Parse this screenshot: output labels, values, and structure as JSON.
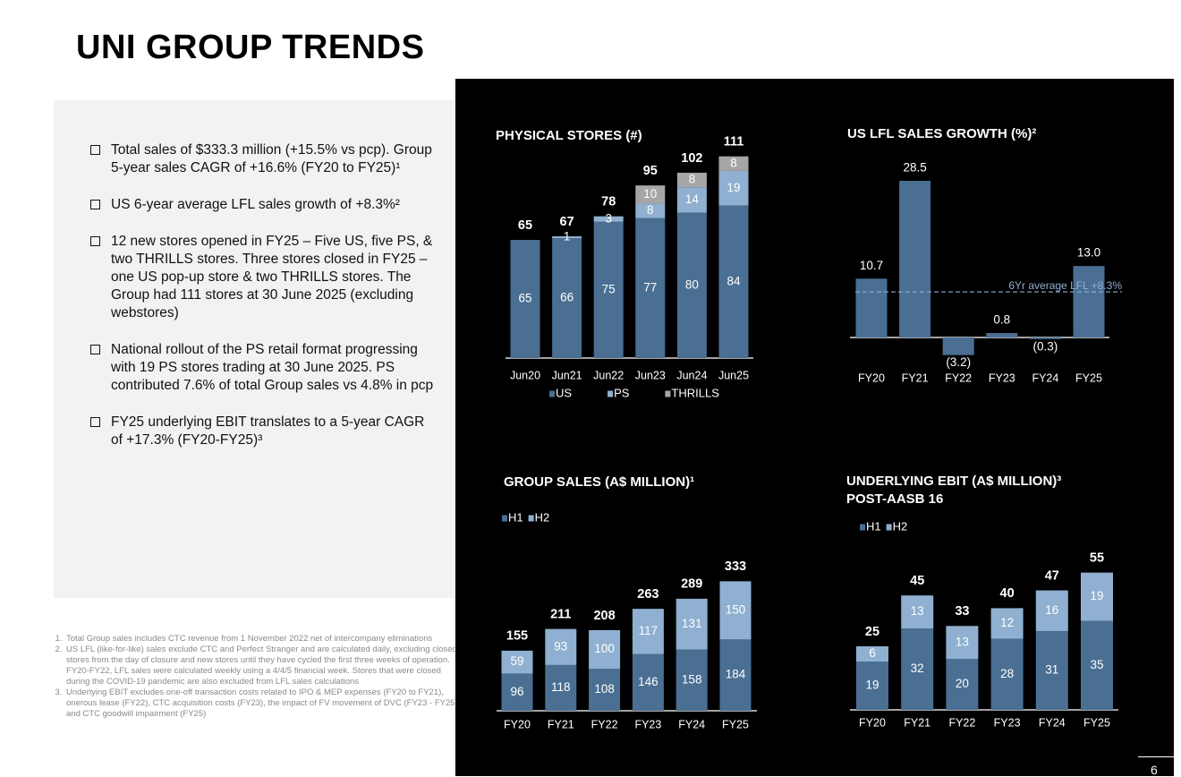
{
  "title": "UNI GROUP TRENDS",
  "bullets": [
    "Total sales of $333.3 million (+15.5% vs pcp). Group 5-year sales CAGR of +16.6% (FY20 to FY25)¹",
    "US 6-year average LFL sales growth of +8.3%²",
    "12 new stores opened in FY25 – Five US, five PS, & two THRILLS stores.  Three stores closed in FY25 – one US pop-up store & two THRILLS stores. The Group had 111 stores at 30 June 2025 (excluding webstores)",
    "National rollout of the PS retail format progressing with 19 PS stores trading at 30 June 2025.  PS contributed 7.6% of total Group sales vs 4.8% in pcp",
    "FY25 underlying EBIT translates to a 5-year CAGR of +17.3% (FY20-FY25)³"
  ],
  "footnotes": [
    "Total Group sales includes CTC revenue from 1 November 2022 net of intercompany eliminations",
    "US LFL (like-for-like) sales exclude CTC and Perfect Stranger and are calculated daily, excluding closed stores from the day of closure and new stores until they have cycled the first three weeks of operation. FY20-FY22, LFL sales were calculated weekly using a 4/4/5 financial week. Stores that were closed during the COVID-19 pandemic are also excluded from LFL sales calculations",
    "Underlying EBIT excludes one-off transaction costs related to IPO & MEP expenses (FY20 to FY21), onerous lease (FY22), CTC acquisition costs (FY23), the impact of FV movement of DVC (FY23 - FY25) and CTC goodwill impairment (FY25)"
  ],
  "page_number": "6",
  "chart_data": [
    {
      "type": "stacked_bar",
      "title": "PHYSICAL STORES (#)",
      "categories": [
        "Jun20",
        "Jun21",
        "Jun22",
        "Jun23",
        "Jun24",
        "Jun25"
      ],
      "series": [
        {
          "name": "US",
          "color": "#4a6f93",
          "values": [
            65,
            66,
            75,
            77,
            80,
            84
          ]
        },
        {
          "name": "PS",
          "color": "#8fb0d0",
          "values": [
            null,
            1,
            3,
            8,
            14,
            19
          ]
        },
        {
          "name": "THRILLS",
          "color": "#a6a6a6",
          "values": [
            null,
            null,
            null,
            10,
            8,
            8
          ]
        }
      ],
      "totals": [
        65,
        67,
        78,
        95,
        102,
        111
      ]
    },
    {
      "type": "bar",
      "title": "US LFL SALES GROWTH (%)²",
      "categories": [
        "FY20",
        "FY21",
        "FY22",
        "FY23",
        "FY24",
        "FY25"
      ],
      "values": [
        10.7,
        28.5,
        -3.2,
        0.8,
        -0.3,
        13.0
      ],
      "value_labels": [
        "10.7",
        "28.5",
        "(3.2)",
        "0.8",
        "(0.3)",
        "13.0"
      ],
      "color": "#4a6f93",
      "average": {
        "value": 8.3,
        "label": "6Yr average LFL +8.3%"
      }
    },
    {
      "type": "stacked_bar",
      "title": "GROUP SALES (A$ MILLION)¹",
      "categories": [
        "FY20",
        "FY21",
        "FY22",
        "FY23",
        "FY24",
        "FY25"
      ],
      "series": [
        {
          "name": "H1",
          "color": "#4a6f93",
          "values": [
            96,
            118,
            108,
            146,
            158,
            184
          ]
        },
        {
          "name": "H2",
          "color": "#8fb0d0",
          "values": [
            59,
            93,
            100,
            117,
            131,
            150
          ]
        }
      ],
      "totals": [
        155,
        211,
        208,
        263,
        289,
        333
      ]
    },
    {
      "type": "stacked_bar",
      "title": "UNDERLYING EBIT (A$ MILLION)³",
      "subtitle": "POST-AASB 16",
      "categories": [
        "FY20",
        "FY21",
        "FY22",
        "FY23",
        "FY24",
        "FY25"
      ],
      "series": [
        {
          "name": "H1",
          "color": "#4a6f93",
          "values": [
            19,
            32,
            20,
            28,
            31,
            35
          ]
        },
        {
          "name": "H2",
          "color": "#8fb0d0",
          "values": [
            6,
            13,
            13,
            12,
            16,
            19
          ]
        }
      ],
      "totals": [
        25,
        45,
        33,
        40,
        47,
        55
      ]
    }
  ]
}
